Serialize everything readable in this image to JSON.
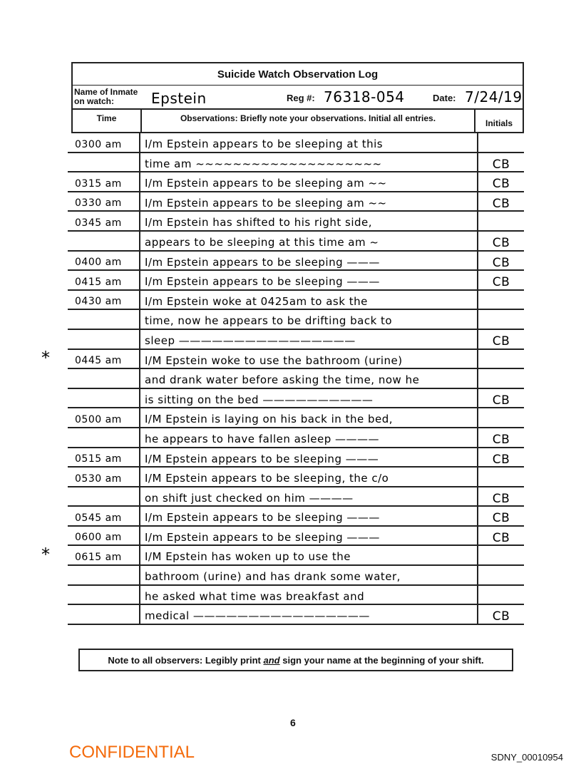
{
  "form": {
    "title": "Suicide Watch Observation Log",
    "name_label_1": "Name of Inmate",
    "name_label_2": "on watch:",
    "name_value": "Epstein",
    "reg_label": "Reg #:",
    "reg_value": "76318-054",
    "date_label": "Date:",
    "date_value": "7/24/19",
    "col_time": "Time",
    "col_observations": "Observations:  Briefly note your observations.  Initial all entries.",
    "col_initials": "Initials"
  },
  "rows": [
    {
      "time": "0300 am",
      "obs": "I/m Epstein appears to be sleeping at this",
      "init": "",
      "star": ""
    },
    {
      "time": "",
      "obs": "time am ~~~~~~~~~~~~~~~~~~~~",
      "init": "CB",
      "star": ""
    },
    {
      "time": "0315 am",
      "obs": "I/m Epstein appears to be sleeping am ~~",
      "init": "CB",
      "star": ""
    },
    {
      "time": "0330 am",
      "obs": "I/m Epstein appears to be sleeping am ~~",
      "init": "CB",
      "star": ""
    },
    {
      "time": "0345 am",
      "obs": "I/m Epstein has shifted to his right side,",
      "init": "",
      "star": ""
    },
    {
      "time": "",
      "obs": "appears to be sleeping at this time am ~",
      "init": "CB",
      "star": ""
    },
    {
      "time": "0400 am",
      "obs": "I/m Epstein appears to be sleeping ———",
      "init": "CB",
      "star": ""
    },
    {
      "time": "0415 am",
      "obs": "I/m Epstein appears to be sleeping ———",
      "init": "CB",
      "star": ""
    },
    {
      "time": "0430 am",
      "obs": "I/m Epstein woke at 0425am to ask the",
      "init": "",
      "star": ""
    },
    {
      "time": "",
      "obs": "time, now he appears to be drifting back to",
      "init": "",
      "star": ""
    },
    {
      "time": "",
      "obs": "sleep ————————————————",
      "init": "CB",
      "star": ""
    },
    {
      "time": "0445 am",
      "obs": "I/M Epstein woke to use the bathroom (urine)",
      "init": "",
      "star": "*"
    },
    {
      "time": "",
      "obs": "and drank water before asking the time, now he",
      "init": "",
      "star": ""
    },
    {
      "time": "",
      "obs": "is sitting on the bed ——————————",
      "init": "CB",
      "star": ""
    },
    {
      "time": "0500 am",
      "obs": "I/M Epstein is laying on his back in the bed,",
      "init": "",
      "star": ""
    },
    {
      "time": "",
      "obs": "he appears to have fallen asleep ————",
      "init": "CB",
      "star": ""
    },
    {
      "time": "0515 am",
      "obs": "I/M Epstein appears to be sleeping ———",
      "init": "CB",
      "star": ""
    },
    {
      "time": "0530 am",
      "obs": "I/M Epstein appears to be sleeping, the c/o",
      "init": "",
      "star": ""
    },
    {
      "time": "",
      "obs": "on shift just checked on him ————",
      "init": "CB",
      "star": ""
    },
    {
      "time": "0545 am",
      "obs": "I/m Epstein appears to be sleeping ———",
      "init": "CB",
      "star": ""
    },
    {
      "time": "0600 am",
      "obs": "I/m Epstein appears to be sleeping ———",
      "init": "CB",
      "star": ""
    },
    {
      "time": "0615 am",
      "obs": "I/M Epstein has woken up to use the",
      "init": "",
      "star": "*"
    },
    {
      "time": "",
      "obs": "bathroom (urine) and has drank some water,",
      "init": "",
      "star": ""
    },
    {
      "time": "",
      "obs": "he asked what time was breakfast and",
      "init": "",
      "star": ""
    },
    {
      "time": "",
      "obs": "medical ————————————————",
      "init": "CB",
      "star": ""
    }
  ],
  "note": {
    "before": "Note to all observers: Legibly print ",
    "emphasis": "and",
    "after": " sign your name at the beginning of your shift."
  },
  "page_number": "6",
  "confidential": "CONFIDENTIAL",
  "bates": "SDNY_00010954",
  "colors": {
    "confidential": "#f46a0a",
    "ink": "#000000"
  }
}
